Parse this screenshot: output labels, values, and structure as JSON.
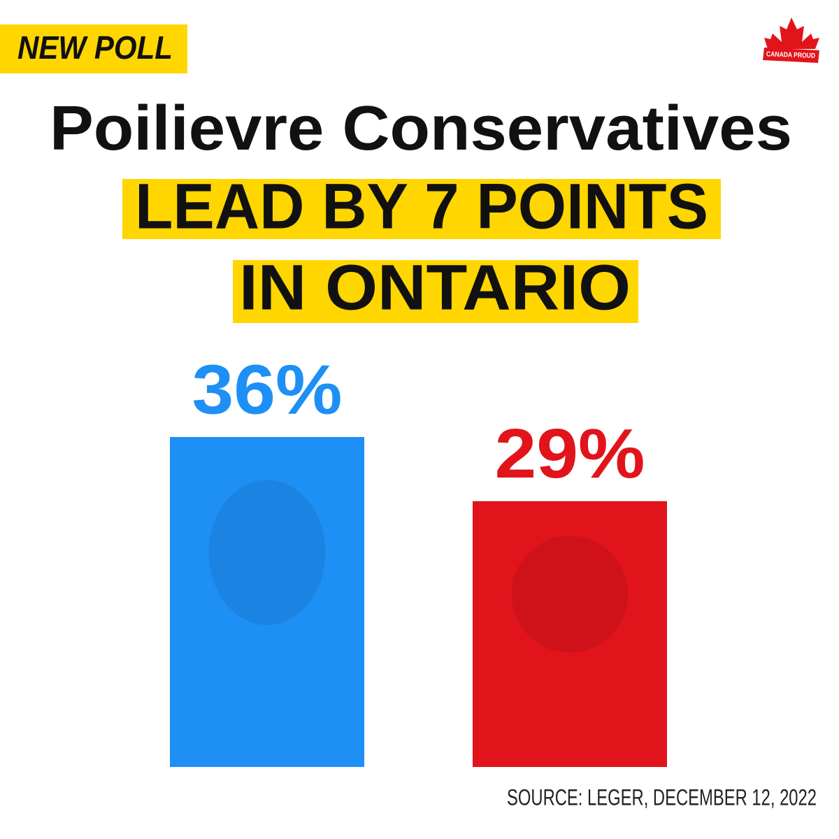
{
  "chart_data": {
    "type": "bar",
    "badge": "NEW POLL",
    "brand": "CANADA PROUD",
    "title": "Poilievre Conservatives",
    "subtitle": [
      "LEAD BY 7 POINTS",
      "IN ONTARIO"
    ],
    "categories": [
      null,
      null
    ],
    "values": [
      36,
      29
    ],
    "value_labels": [
      "36%",
      "29%"
    ],
    "colors": [
      "#1e8ff5",
      "#e1141c"
    ],
    "source": "SOURCE: LEGER, DECEMBER 12, 2022"
  }
}
